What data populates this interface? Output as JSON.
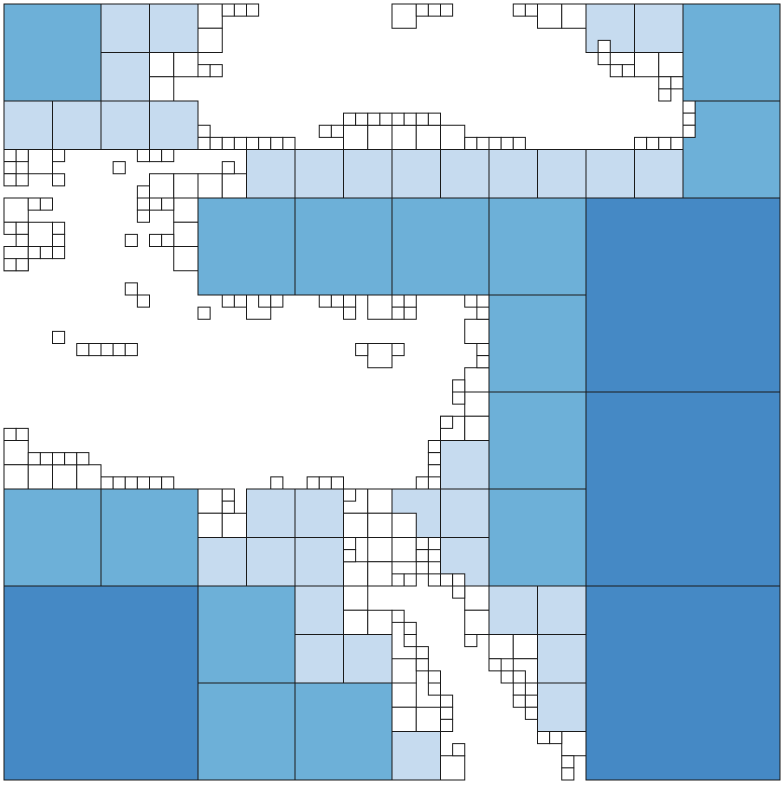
{
  "figure": {
    "kind": "quadtree-subdivision",
    "grid_units": 32,
    "palette": {
      "level-16": "#3f5f8c",
      "level-8": "#4589c5",
      "level-4": "#6db0d8",
      "level-2": "#c6dbef",
      "level-1": "#ffffff"
    }
  }
}
